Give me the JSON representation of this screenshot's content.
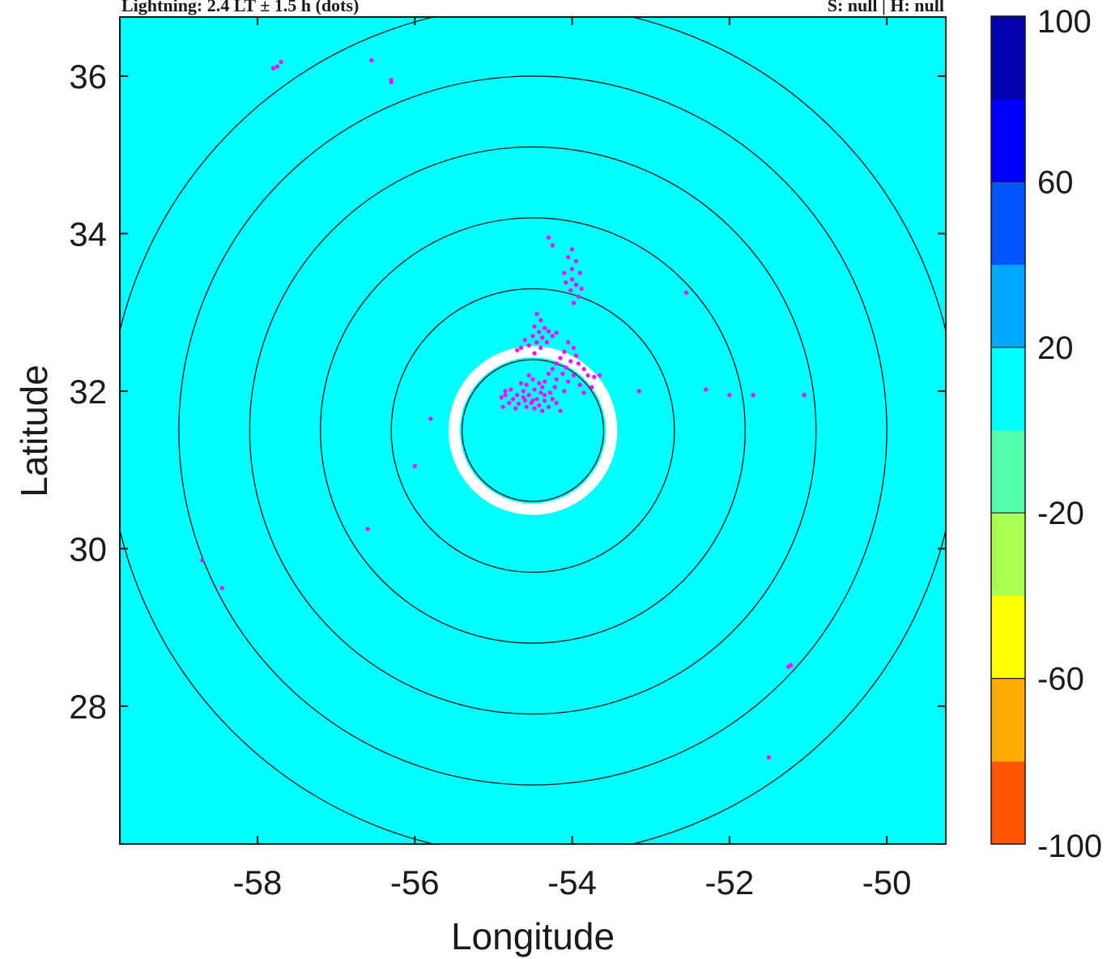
{
  "chart_data": {
    "type": "scatter",
    "header_left": "Lightning:  2.4 LT ± 1.5 h  (dots)",
    "header_right": "S: null | H: null",
    "xlabel": "Longitude",
    "ylabel": "Latitude",
    "xlim": [
      -59.75,
      -49.25
    ],
    "ylim": [
      26.25,
      36.75
    ],
    "xticks": [
      -58,
      -56,
      -54,
      -52,
      -50
    ],
    "yticks": [
      28,
      30,
      32,
      34,
      36
    ],
    "background_color": "#00ffff",
    "ring_center": {
      "lon": -54.5,
      "lat": 31.5
    },
    "range_rings_deg": [
      0.9,
      1.8,
      2.7,
      3.6,
      4.5,
      5.4
    ],
    "white_ring_radius_deg": 1.0,
    "lightning_color": "#ff00ff",
    "lightning_points": [
      [
        -57.8,
        36.1
      ],
      [
        -57.75,
        36.12
      ],
      [
        -57.7,
        36.18
      ],
      [
        -56.55,
        36.2
      ],
      [
        -56.3,
        35.95
      ],
      [
        -56.3,
        35.92
      ],
      [
        -54.3,
        33.95
      ],
      [
        -54.25,
        33.85
      ],
      [
        -54.0,
        33.8
      ],
      [
        -54.05,
        33.7
      ],
      [
        -53.95,
        33.65
      ],
      [
        -54.0,
        33.55
      ],
      [
        -54.1,
        33.5
      ],
      [
        -53.9,
        33.5
      ],
      [
        -54.0,
        33.42
      ],
      [
        -54.08,
        33.38
      ],
      [
        -53.95,
        33.35
      ],
      [
        -53.88,
        33.3
      ],
      [
        -54.02,
        33.28
      ],
      [
        -53.92,
        33.2
      ],
      [
        -53.98,
        33.12
      ],
      [
        -52.55,
        33.25
      ],
      [
        -54.45,
        32.98
      ],
      [
        -54.4,
        32.9
      ],
      [
        -54.48,
        32.82
      ],
      [
        -54.35,
        32.8
      ],
      [
        -54.42,
        32.75
      ],
      [
        -54.3,
        32.76
      ],
      [
        -54.5,
        32.7
      ],
      [
        -54.38,
        32.68
      ],
      [
        -54.2,
        32.74
      ],
      [
        -54.45,
        32.62
      ],
      [
        -54.6,
        32.65
      ],
      [
        -54.55,
        32.58
      ],
      [
        -54.4,
        32.55
      ],
      [
        -54.32,
        32.62
      ],
      [
        -54.65,
        32.55
      ],
      [
        -54.48,
        32.48
      ],
      [
        -54.7,
        32.52
      ],
      [
        -54.25,
        32.7
      ],
      [
        -54.05,
        32.62
      ],
      [
        -53.98,
        32.55
      ],
      [
        -54.1,
        32.5
      ],
      [
        -53.95,
        32.45
      ],
      [
        -54.15,
        32.42
      ],
      [
        -54.02,
        32.38
      ],
      [
        -54.2,
        32.35
      ],
      [
        -53.92,
        32.35
      ],
      [
        -54.08,
        32.3
      ],
      [
        -54.25,
        32.28
      ],
      [
        -53.85,
        32.28
      ],
      [
        -54.12,
        32.22
      ],
      [
        -54.3,
        32.22
      ],
      [
        -53.98,
        32.2
      ],
      [
        -53.8,
        32.2
      ],
      [
        -54.2,
        32.15
      ],
      [
        -54.05,
        32.12
      ],
      [
        -53.72,
        32.18
      ],
      [
        -53.65,
        32.2
      ],
      [
        -54.35,
        32.12
      ],
      [
        -54.22,
        32.05
      ],
      [
        -53.9,
        32.08
      ],
      [
        -54.38,
        32.05
      ],
      [
        -54.1,
        32.0
      ],
      [
        -53.75,
        32.05
      ],
      [
        -54.28,
        31.98
      ],
      [
        -53.85,
        31.98
      ],
      [
        -54.5,
        32.15
      ],
      [
        -54.42,
        32.1
      ],
      [
        -54.58,
        32.08
      ],
      [
        -54.48,
        32.02
      ],
      [
        -54.62,
        32.0
      ],
      [
        -54.4,
        31.98
      ],
      [
        -54.55,
        31.95
      ],
      [
        -54.7,
        31.95
      ],
      [
        -54.45,
        31.9
      ],
      [
        -54.6,
        31.88
      ],
      [
        -54.75,
        31.9
      ],
      [
        -54.35,
        31.88
      ],
      [
        -54.52,
        31.85
      ],
      [
        -54.68,
        31.84
      ],
      [
        -54.42,
        31.82
      ],
      [
        -54.8,
        31.85
      ],
      [
        -54.58,
        31.8
      ],
      [
        -54.3,
        31.8
      ],
      [
        -54.48,
        31.78
      ],
      [
        -54.72,
        31.78
      ],
      [
        -54.85,
        31.95
      ],
      [
        -54.78,
        32.02
      ],
      [
        -54.65,
        32.1
      ],
      [
        -54.55,
        32.2
      ],
      [
        -54.85,
        32.0
      ],
      [
        -54.9,
        31.92
      ],
      [
        -54.2,
        31.85
      ],
      [
        -54.15,
        31.75
      ],
      [
        -54.88,
        31.8
      ],
      [
        -54.35,
        31.95
      ],
      [
        -54.25,
        31.9
      ],
      [
        -54.62,
        31.92
      ],
      [
        -54.5,
        31.88
      ],
      [
        -54.38,
        31.75
      ],
      [
        -55.8,
        31.65
      ],
      [
        -56.0,
        31.05
      ],
      [
        -56.6,
        30.25
      ],
      [
        -53.15,
        32.0
      ],
      [
        -52.3,
        32.02
      ],
      [
        -52.0,
        31.95
      ],
      [
        -51.7,
        31.95
      ],
      [
        -51.05,
        31.95
      ],
      [
        -58.7,
        29.85
      ],
      [
        -58.45,
        29.5
      ],
      [
        -51.25,
        28.5
      ],
      [
        -51.22,
        28.52
      ],
      [
        -51.5,
        27.35
      ]
    ],
    "colorbar": {
      "labels": [
        "100",
        "60",
        "20",
        "-20",
        "-60",
        "-100"
      ],
      "colors": [
        "#ff5500",
        "#ffaa00",
        "#ffff00",
        "#aaff55",
        "#55ffaa",
        "#00ffff",
        "#00aaff",
        "#0055ff",
        "#0000ff",
        "#0000aa"
      ]
    }
  }
}
